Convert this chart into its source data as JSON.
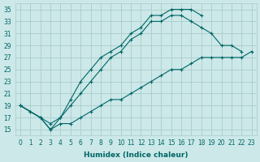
{
  "xlabel": "Humidex (Indice chaleur)",
  "xlim": [
    -0.5,
    23.5
  ],
  "ylim": [
    14,
    36
  ],
  "yticks": [
    15,
    17,
    19,
    21,
    23,
    25,
    27,
    29,
    31,
    33,
    35
  ],
  "xticks": [
    0,
    1,
    2,
    3,
    4,
    5,
    6,
    7,
    8,
    9,
    10,
    11,
    12,
    13,
    14,
    15,
    16,
    17,
    18,
    19,
    20,
    21,
    22,
    23
  ],
  "bg_color": "#cce8e8",
  "grid_color": "#aacccc",
  "line_color": "#006666",
  "lines": [
    {
      "x": [
        0,
        1,
        2,
        3,
        4,
        5,
        6,
        7,
        8,
        9,
        10,
        11,
        12,
        13,
        14,
        15,
        16,
        17,
        18
      ],
      "y": [
        19,
        18,
        17,
        15,
        17,
        20,
        23,
        25,
        27,
        28,
        29,
        31,
        32,
        34,
        34,
        35,
        35,
        35,
        34
      ]
    },
    {
      "x": [
        0,
        2,
        3,
        4,
        5,
        6,
        7,
        8,
        9,
        10,
        11,
        12,
        13,
        14,
        15,
        16,
        17,
        18,
        19,
        20,
        21,
        22
      ],
      "y": [
        19,
        17,
        16,
        17,
        19,
        21,
        23,
        25,
        27,
        28,
        30,
        31,
        33,
        33,
        34,
        34,
        33,
        32,
        31,
        29,
        29,
        28
      ]
    },
    {
      "x": [
        0,
        1,
        2,
        3,
        4,
        5,
        6,
        7,
        8,
        9,
        10,
        11,
        12,
        13,
        14,
        15,
        16,
        17,
        18,
        19,
        20,
        21,
        22,
        23
      ],
      "y": [
        19,
        18,
        17,
        15,
        16,
        16,
        17,
        18,
        19,
        20,
        20,
        21,
        22,
        23,
        24,
        25,
        25,
        26,
        27,
        27,
        27,
        27,
        27,
        28
      ]
    }
  ]
}
